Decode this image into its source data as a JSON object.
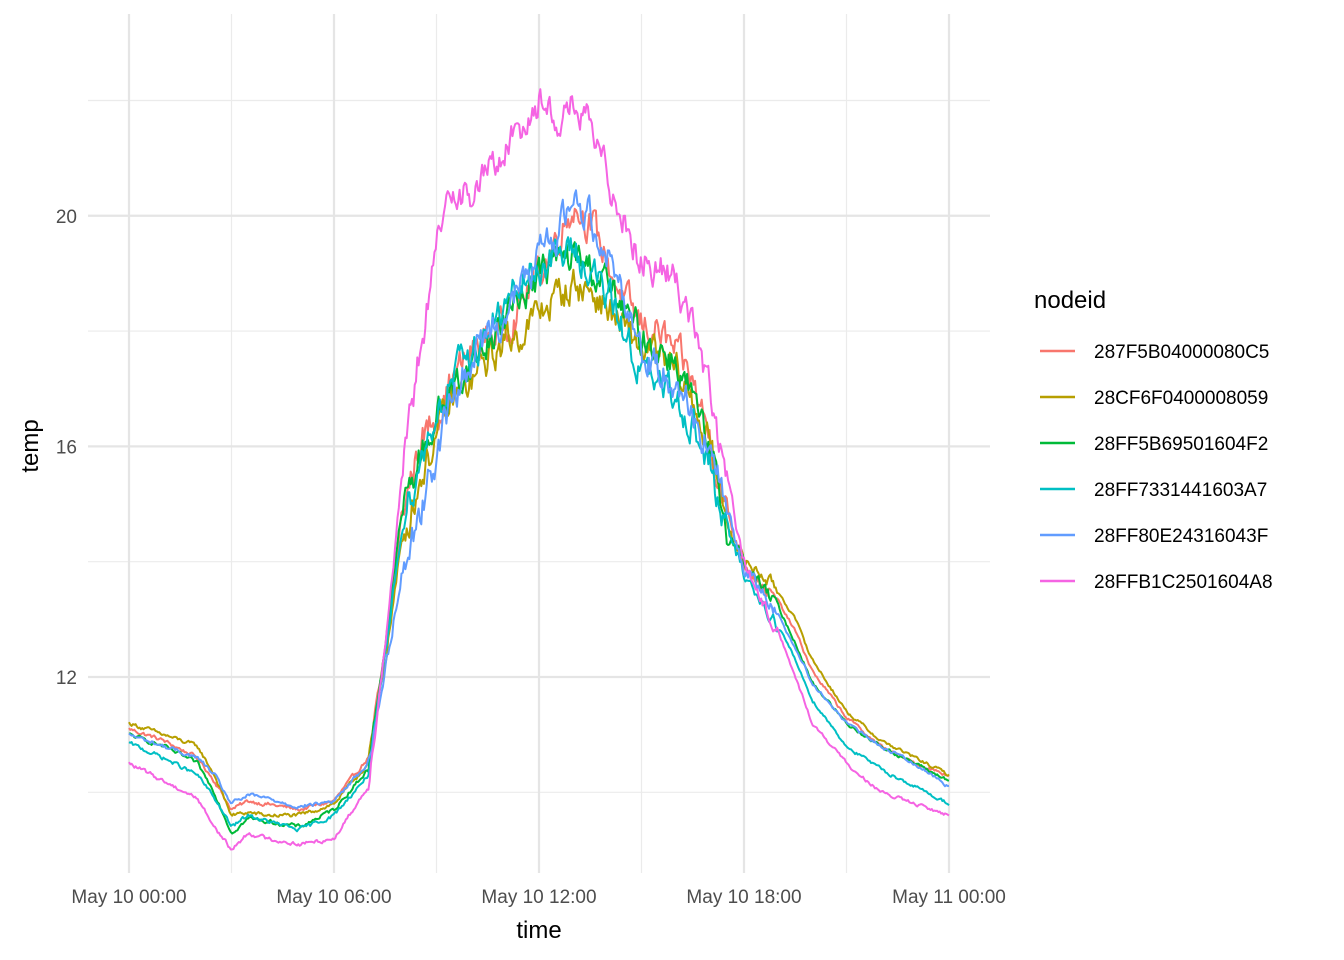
{
  "chart_data": {
    "type": "line",
    "xlabel": "time",
    "ylabel": "temp",
    "x_ticks": [
      "May 10 00:00",
      "May 10 06:00",
      "May 10 12:00",
      "May 10 18:00",
      "May 11 00:00"
    ],
    "x_tick_hours": [
      0,
      6,
      12,
      18,
      24
    ],
    "xlim_hours": [
      -1.2,
      25.2
    ],
    "y_ticks": [
      12,
      16,
      20
    ],
    "y_minor_ticks": [
      10,
      14,
      18,
      22
    ],
    "ylim": [
      8.6,
      23.5
    ],
    "grid": true,
    "legend": {
      "title": "nodeid",
      "placement": "right"
    },
    "x_units": "hours since May 10 00:00",
    "series": [
      {
        "name": "287F5B04000080C5",
        "color": "#F8766D",
        "x": [
          0,
          1,
          2,
          2.5,
          3,
          3.5,
          4,
          5,
          6,
          7,
          7.5,
          8,
          8.5,
          9,
          9.5,
          10,
          10.5,
          11,
          11.5,
          12,
          12.5,
          13,
          13.5,
          14,
          14.5,
          15,
          15.5,
          16,
          16.5,
          17,
          17.5,
          18,
          18.5,
          19,
          19.5,
          20,
          21,
          22,
          23,
          24
        ],
        "values": [
          11.1,
          10.9,
          10.6,
          10.2,
          9.7,
          9.85,
          9.8,
          9.7,
          9.85,
          10.6,
          12.4,
          14.9,
          16.0,
          16.6,
          17.2,
          17.6,
          17.9,
          18.1,
          18.5,
          19.0,
          19.6,
          20.2,
          19.9,
          19.2,
          18.5,
          18.1,
          18.0,
          17.6,
          17.1,
          16.2,
          14.8,
          14.0,
          13.6,
          13.3,
          12.8,
          12.1,
          11.3,
          10.8,
          10.5,
          10.3
        ]
      },
      {
        "name": "28CF6F0400008059",
        "color": "#B79F00",
        "x": [
          0,
          1,
          2,
          2.5,
          3,
          3.5,
          4,
          5,
          6,
          7,
          7.5,
          8,
          8.5,
          9,
          9.5,
          10,
          10.5,
          11,
          11.5,
          12,
          12.5,
          13,
          13.5,
          14,
          14.5,
          15,
          15.5,
          16,
          16.5,
          17,
          17.5,
          18,
          18.5,
          19,
          19.5,
          20,
          21,
          22,
          23,
          24
        ],
        "values": [
          11.2,
          11.0,
          10.8,
          10.3,
          9.6,
          9.65,
          9.6,
          9.6,
          9.8,
          10.5,
          12.3,
          14.4,
          15.4,
          16.2,
          16.8,
          17.1,
          17.5,
          17.8,
          18.0,
          18.3,
          18.6,
          18.8,
          18.7,
          18.4,
          18.0,
          17.7,
          17.5,
          17.3,
          16.8,
          16.0,
          14.7,
          14.0,
          13.8,
          13.5,
          13.0,
          12.3,
          11.4,
          10.9,
          10.6,
          10.3
        ]
      },
      {
        "name": "28FF5B69501604F2",
        "color": "#00BA38",
        "x": [
          0,
          1,
          2,
          2.5,
          3,
          3.5,
          4,
          5,
          6,
          7,
          7.5,
          8,
          8.5,
          9,
          9.5,
          10,
          10.5,
          11,
          11.5,
          12,
          12.5,
          13,
          13.5,
          14,
          14.5,
          15,
          15.5,
          16,
          16.5,
          17,
          17.5,
          18,
          18.5,
          19,
          19.5,
          20,
          21,
          22,
          23,
          24
        ],
        "values": [
          11.0,
          10.8,
          10.5,
          10.0,
          9.3,
          9.55,
          9.5,
          9.4,
          9.7,
          10.4,
          12.6,
          14.9,
          15.8,
          16.5,
          17.0,
          17.4,
          17.8,
          18.2,
          18.7,
          19.0,
          19.2,
          19.3,
          19.1,
          18.8,
          18.3,
          17.9,
          17.7,
          17.5,
          16.8,
          15.8,
          14.6,
          14.0,
          13.6,
          13.2,
          12.6,
          11.9,
          11.2,
          10.8,
          10.5,
          10.2
        ]
      },
      {
        "name": "28FF7331441603A7",
        "color": "#00BFC4",
        "x": [
          0,
          1,
          2,
          2.5,
          3,
          3.5,
          4,
          5,
          6,
          7,
          7.5,
          8,
          8.5,
          9,
          9.5,
          10,
          10.5,
          11,
          11.5,
          12,
          12.5,
          13,
          13.5,
          14,
          14.5,
          15,
          15.5,
          16,
          16.5,
          17,
          17.5,
          18,
          18.5,
          19,
          19.5,
          20,
          21,
          22,
          23,
          24
        ],
        "values": [
          10.85,
          10.6,
          10.3,
          9.9,
          9.4,
          9.6,
          9.5,
          9.35,
          9.6,
          10.3,
          12.3,
          14.7,
          15.7,
          16.6,
          17.2,
          17.6,
          18.0,
          18.4,
          18.8,
          19.1,
          19.3,
          19.4,
          19.1,
          18.6,
          18.0,
          17.3,
          17.0,
          16.9,
          16.4,
          15.6,
          14.5,
          13.8,
          13.3,
          12.9,
          12.3,
          11.6,
          10.8,
          10.4,
          10.1,
          9.8
        ]
      },
      {
        "name": "28FF80E24316043F",
        "color": "#619CFF",
        "x": [
          0,
          1,
          2,
          2.5,
          3,
          3.5,
          4,
          5,
          6,
          7,
          7.5,
          8,
          8.5,
          9,
          9.5,
          10,
          10.5,
          11,
          11.5,
          12,
          12.5,
          13,
          13.5,
          14,
          14.5,
          15,
          15.5,
          16,
          16.5,
          17,
          17.5,
          18,
          18.5,
          19,
          19.5,
          20,
          21,
          22,
          23,
          24
        ],
        "values": [
          11.0,
          10.8,
          10.6,
          10.3,
          9.8,
          9.95,
          9.9,
          9.75,
          9.85,
          10.5,
          12.1,
          13.9,
          14.8,
          15.9,
          16.9,
          17.5,
          18.0,
          18.3,
          18.8,
          19.3,
          19.7,
          20.3,
          20.0,
          19.4,
          18.6,
          17.7,
          17.3,
          17.2,
          16.6,
          15.9,
          14.9,
          13.9,
          13.5,
          13.1,
          12.5,
          11.9,
          11.2,
          10.8,
          10.5,
          10.1
        ]
      },
      {
        "name": "28FFB1C2501604A8",
        "color": "#F564E3",
        "x": [
          0,
          1,
          2,
          2.5,
          3,
          3.5,
          4,
          5,
          6,
          7,
          7.5,
          8,
          8.5,
          9,
          9.5,
          10,
          10.5,
          11,
          11.5,
          12,
          12.5,
          13,
          13.5,
          14,
          14.5,
          15,
          15.5,
          16,
          16.5,
          17,
          17.5,
          18,
          18.5,
          19,
          19.5,
          20,
          21,
          22,
          23,
          24
        ],
        "values": [
          10.5,
          10.2,
          9.9,
          9.4,
          9.0,
          9.3,
          9.2,
          9.1,
          9.2,
          10.1,
          12.6,
          15.5,
          17.6,
          19.4,
          20.6,
          20.3,
          20.8,
          21.1,
          21.6,
          22.0,
          21.7,
          21.9,
          21.5,
          20.7,
          20.0,
          19.2,
          19.1,
          18.9,
          18.2,
          16.9,
          15.4,
          14.0,
          13.3,
          12.8,
          12.0,
          11.2,
          10.5,
          10.0,
          9.8,
          9.6
        ]
      }
    ]
  }
}
